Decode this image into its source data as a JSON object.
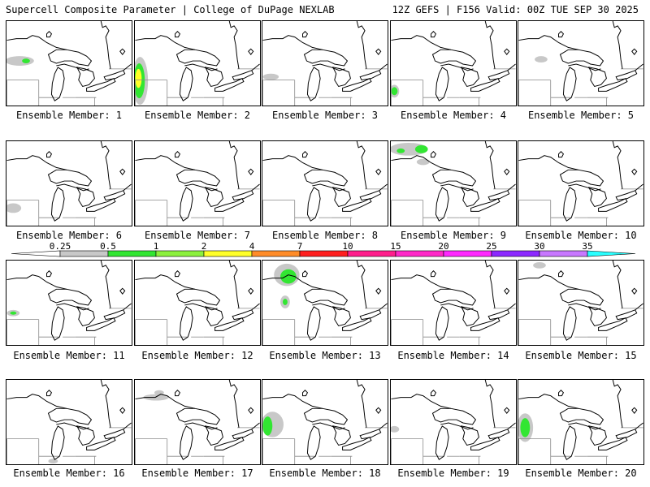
{
  "header": {
    "title_left": "Supercell Composite Parameter | College of DuPage NEXLAB",
    "title_right": "12Z GEFS | F156 Valid: 00Z TUE SEP 30 2025"
  },
  "member_label_prefix": "Ensemble Member:",
  "members": [
    {
      "id": "1",
      "label": "Ensemble Member: 1"
    },
    {
      "id": "2",
      "label": "Ensemble Member: 2"
    },
    {
      "id": "3",
      "label": "Ensemble Member: 3"
    },
    {
      "id": "4",
      "label": "Ensemble Member: 4"
    },
    {
      "id": "5",
      "label": "Ensemble Member: 5"
    },
    {
      "id": "6",
      "label": "Ensemble Member: 6"
    },
    {
      "id": "7",
      "label": "Ensemble Member: 7"
    },
    {
      "id": "8",
      "label": "Ensemble Member: 8"
    },
    {
      "id": "9",
      "label": "Ensemble Member: 9"
    },
    {
      "id": "10",
      "label": "Ensemble Member: 10"
    },
    {
      "id": "11",
      "label": "Ensemble Member: 11"
    },
    {
      "id": "12",
      "label": "Ensemble Member: 12"
    },
    {
      "id": "13",
      "label": "Ensemble Member: 13"
    },
    {
      "id": "14",
      "label": "Ensemble Member: 14"
    },
    {
      "id": "15",
      "label": "Ensemble Member: 15"
    },
    {
      "id": "16",
      "label": "Ensemble Member: 16"
    },
    {
      "id": "17",
      "label": "Ensemble Member: 17"
    },
    {
      "id": "18",
      "label": "Ensemble Member: 18"
    },
    {
      "id": "19",
      "label": "Ensemble Member: 19"
    },
    {
      "id": "20",
      "label": "Ensemble Member: 20"
    }
  ],
  "colorbar": {
    "labels": [
      "0.25",
      "0.5",
      "1",
      "2",
      "4",
      "7",
      "10",
      "15",
      "20",
      "25",
      "30",
      "35"
    ],
    "colors": [
      "#c8c8c8",
      "#32e632",
      "#8cf03c",
      "#ffff28",
      "#ff8c28",
      "#ff1e1e",
      "#ff1e8c",
      "#ff28c8",
      "#ff28ff",
      "#8c28ff",
      "#c878ff",
      "#28ffff"
    ]
  },
  "map_colors": {
    "border": "#000000",
    "state_lines": "#888888",
    "background": "#ffffff"
  }
}
